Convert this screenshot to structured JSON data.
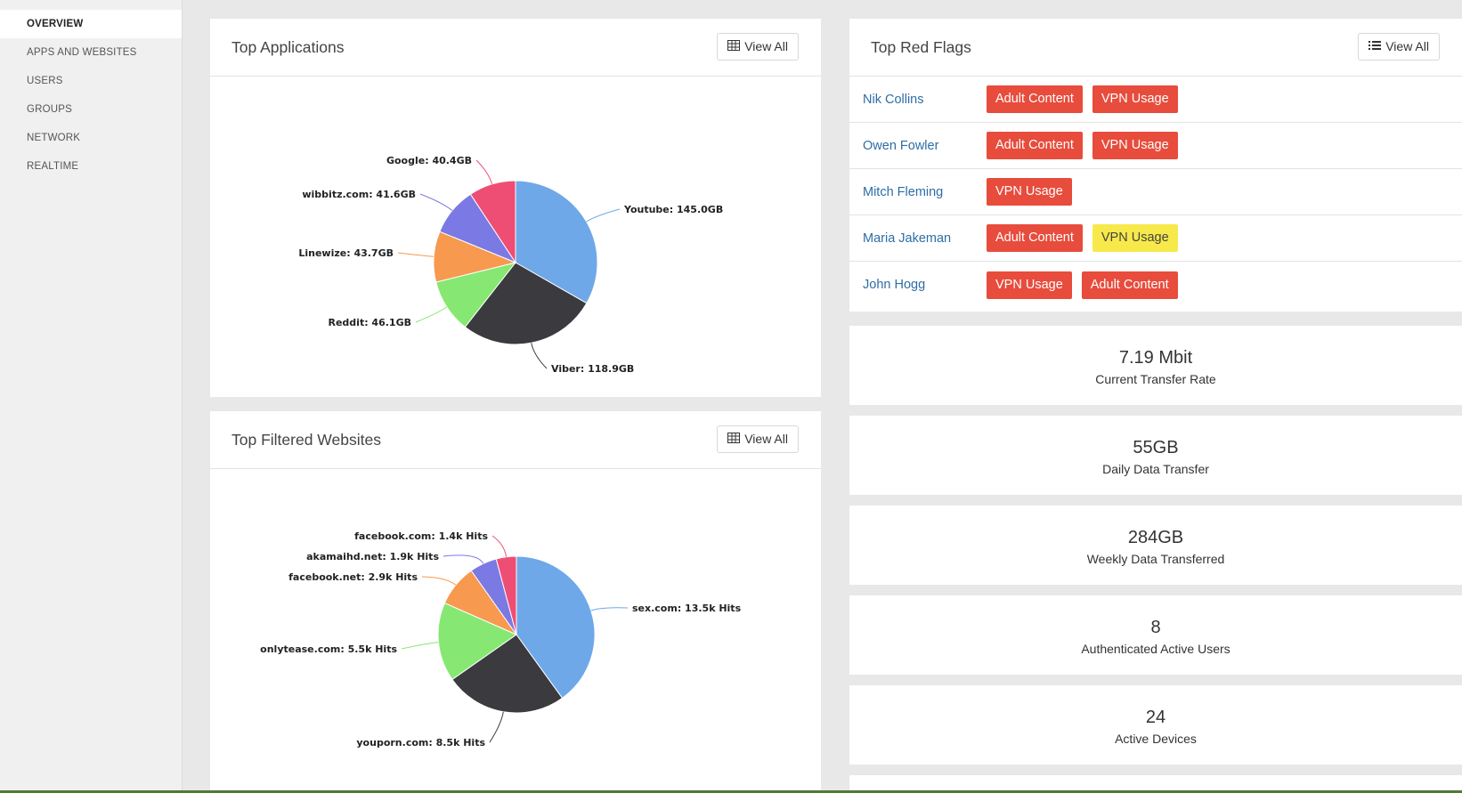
{
  "sidebar": {
    "items": [
      {
        "label": "OVERVIEW",
        "active": true
      },
      {
        "label": "APPS AND WEBSITES"
      },
      {
        "label": "USERS"
      },
      {
        "label": "GROUPS"
      },
      {
        "label": "NETWORK"
      },
      {
        "label": "REALTIME"
      }
    ]
  },
  "top_applications": {
    "title": "Top Applications",
    "view_all": "View All",
    "view_all_icon": "table-icon"
  },
  "top_filtered": {
    "title": "Top Filtered Websites",
    "view_all": "View All",
    "view_all_icon": "table-icon"
  },
  "red_flags": {
    "title": "Top Red Flags",
    "view_all": "View All",
    "view_all_icon": "list-icon",
    "rows": [
      {
        "name": "Nik Collins",
        "tags": [
          {
            "label": "Adult Content",
            "color": "red"
          },
          {
            "label": "VPN Usage",
            "color": "red"
          }
        ]
      },
      {
        "name": "Owen Fowler",
        "tags": [
          {
            "label": "Adult Content",
            "color": "red"
          },
          {
            "label": "VPN Usage",
            "color": "red"
          }
        ]
      },
      {
        "name": "Mitch Fleming",
        "tags": [
          {
            "label": "VPN Usage",
            "color": "red"
          }
        ]
      },
      {
        "name": "Maria Jakeman",
        "tags": [
          {
            "label": "Adult Content",
            "color": "red"
          },
          {
            "label": "VPN Usage",
            "color": "yellow"
          }
        ]
      },
      {
        "name": "John Hogg",
        "tags": [
          {
            "label": "VPN Usage",
            "color": "red"
          },
          {
            "label": "Adult Content",
            "color": "red"
          }
        ]
      }
    ]
  },
  "stats": [
    {
      "value": "7.19 Mbit",
      "label": "Current Transfer Rate"
    },
    {
      "value": "55GB",
      "label": "Daily Data Transfer"
    },
    {
      "value": "284GB",
      "label": "Weekly Data Transferred"
    },
    {
      "value": "8",
      "label": "Authenticated Active Users"
    },
    {
      "value": "24",
      "label": "Active Devices"
    }
  ],
  "colors": {
    "tag_red": "#e74c3c",
    "tag_yellow": "#f7e94a",
    "link": "#2e6da4"
  },
  "chart_data": [
    {
      "type": "pie",
      "slices": [
        {
          "label": "Youtube: 145.0GB",
          "value": 145.0,
          "color": "#6fa8e8"
        },
        {
          "label": "Viber: 118.9GB",
          "value": 118.9,
          "color": "#3a3a3f"
        },
        {
          "label": "Reddit: 46.1GB",
          "value": 46.1,
          "color": "#86e872"
        },
        {
          "label": "Linewize: 43.7GB",
          "value": 43.7,
          "color": "#f7994f"
        },
        {
          "label": "wibbitz.com: 41.6GB",
          "value": 41.6,
          "color": "#7b79e3"
        },
        {
          "label": "Google: 40.4GB",
          "value": 40.4,
          "color": "#ee4e74"
        }
      ]
    },
    {
      "type": "pie",
      "slices": [
        {
          "label": "sex.com: 13.5k Hits",
          "value": 13.5,
          "color": "#6fa8e8"
        },
        {
          "label": "youporn.com: 8.5k Hits",
          "value": 8.5,
          "color": "#3a3a3f"
        },
        {
          "label": "onlytease.com: 5.5k Hits",
          "value": 5.5,
          "color": "#86e872"
        },
        {
          "label": "facebook.net: 2.9k Hits",
          "value": 2.9,
          "color": "#f7994f"
        },
        {
          "label": "akamaihd.net: 1.9k Hits",
          "value": 1.9,
          "color": "#7b79e3"
        },
        {
          "label": "facebook.com: 1.4k Hits",
          "value": 1.4,
          "color": "#ee4e74"
        }
      ]
    }
  ]
}
